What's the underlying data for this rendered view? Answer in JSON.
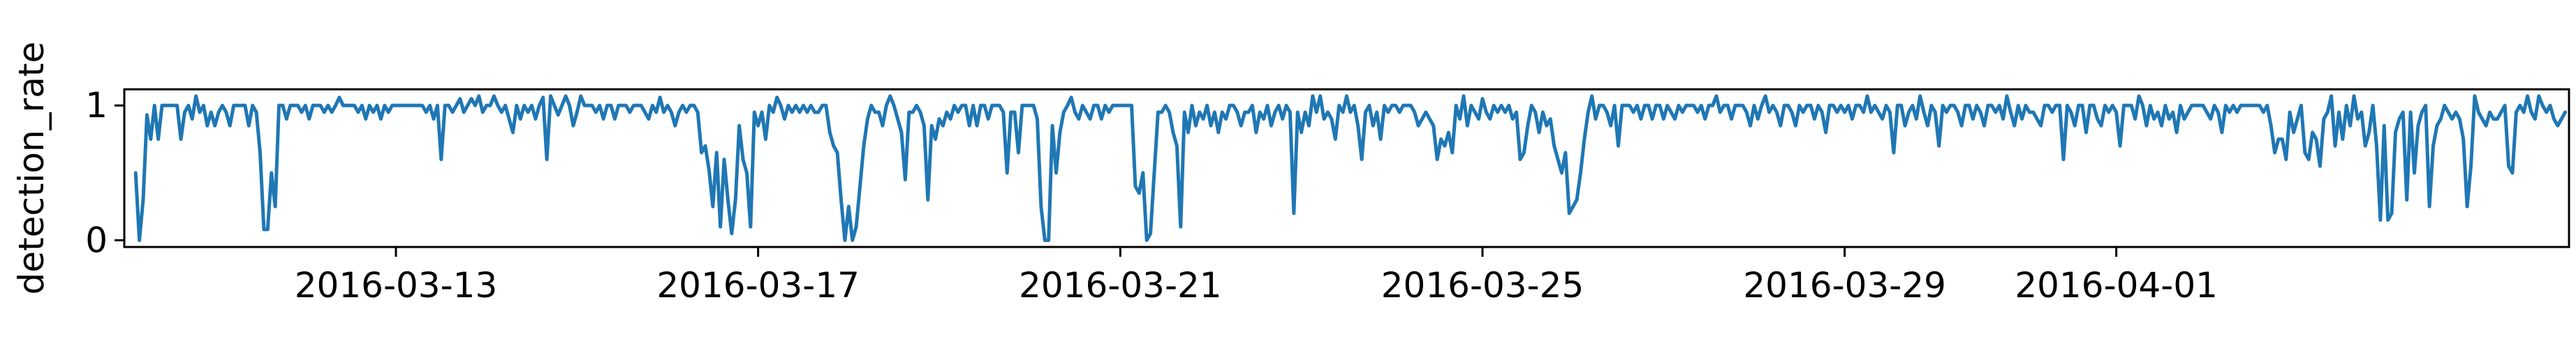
{
  "chart_data": {
    "type": "line",
    "title": "",
    "xlabel": "",
    "ylabel": "detection_rate",
    "x_range": [
      "2016-03-10T00:00",
      "2016-04-06T00:00"
    ],
    "ylim": [
      -0.05,
      1.12
    ],
    "grid": false,
    "legend": "none",
    "line_color": "#1f77b4",
    "y_ticks": [
      {
        "value": 0,
        "label": "0"
      },
      {
        "value": 1,
        "label": "1"
      }
    ],
    "x_ticks": [
      {
        "value": "2016-03-13",
        "label": "2016-03-13"
      },
      {
        "value": "2016-03-17",
        "label": "2016-03-17"
      },
      {
        "value": "2016-03-21",
        "label": "2016-03-21"
      },
      {
        "value": "2016-03-25",
        "label": "2016-03-25"
      },
      {
        "value": "2016-03-29",
        "label": "2016-03-29"
      },
      {
        "value": "2016-04-01",
        "label": "2016-04-01"
      }
    ],
    "series": [
      {
        "x_start": "2016-03-10T03:00",
        "x_step_hours": 1,
        "values": [
          0.5,
          0.0,
          0.3,
          0.93,
          0.75,
          1.0,
          0.75,
          1.0,
          1.0,
          1.0,
          1.0,
          1.0,
          0.75,
          0.95,
          1.0,
          0.9,
          1.07,
          0.95,
          1.0,
          0.85,
          0.95,
          0.85,
          0.95,
          1.0,
          0.95,
          0.85,
          1.0,
          1.0,
          1.0,
          1.0,
          0.85,
          1.0,
          0.95,
          0.65,
          0.08,
          0.08,
          0.5,
          0.25,
          1.0,
          1.0,
          0.9,
          1.0,
          1.0,
          1.0,
          0.95,
          1.0,
          0.9,
          1.0,
          1.0,
          1.0,
          0.95,
          1.0,
          0.95,
          1.0,
          1.06,
          1.0,
          1.0,
          1.0,
          1.0,
          0.95,
          1.0,
          0.9,
          1.0,
          0.95,
          1.0,
          0.9,
          1.0,
          0.95,
          1.0,
          1.0,
          1.0,
          1.0,
          1.0,
          1.0,
          1.0,
          1.0,
          1.0,
          0.95,
          1.0,
          0.9,
          1.0,
          0.6,
          1.0,
          1.0,
          0.95,
          1.0,
          1.05,
          0.95,
          1.0,
          1.05,
          1.0,
          1.07,
          0.95,
          1.0,
          1.0,
          1.07,
          1.0,
          0.95,
          1.0,
          0.9,
          0.8,
          1.0,
          0.9,
          1.0,
          0.95,
          1.0,
          0.9,
          1.0,
          1.06,
          0.6,
          1.07,
          1.0,
          0.93,
          1.0,
          1.07,
          1.0,
          0.85,
          0.95,
          1.07,
          1.0,
          1.0,
          1.0,
          0.95,
          1.0,
          0.9,
          1.0,
          1.0,
          0.9,
          1.0,
          1.0,
          1.0,
          0.95,
          1.0,
          1.0,
          1.0,
          0.95,
          0.9,
          1.0,
          0.95,
          1.06,
          0.95,
          1.0,
          0.95,
          0.85,
          0.95,
          1.0,
          0.95,
          1.0,
          1.0,
          0.95,
          0.65,
          0.7,
          0.52,
          0.25,
          0.65,
          0.1,
          0.6,
          0.3,
          0.05,
          0.3,
          0.85,
          0.6,
          0.5,
          0.1,
          0.95,
          0.85,
          0.95,
          0.75,
          1.0,
          0.95,
          1.06,
          1.0,
          0.9,
          1.0,
          0.95,
          1.0,
          0.95,
          1.0,
          0.95,
          1.0,
          0.95,
          0.95,
          1.0,
          1.0,
          0.8,
          0.7,
          0.65,
          0.3,
          0.0,
          0.25,
          0.0,
          0.1,
          0.4,
          0.7,
          0.9,
          1.0,
          0.95,
          0.95,
          0.85,
          1.0,
          1.07,
          1.0,
          0.9,
          0.8,
          0.45,
          0.95,
          0.95,
          1.0,
          0.95,
          0.85,
          0.3,
          0.85,
          0.75,
          0.9,
          0.85,
          0.95,
          0.9,
          1.0,
          0.95,
          1.0,
          1.0,
          0.85,
          1.0,
          0.85,
          1.0,
          1.0,
          0.9,
          1.0,
          1.0,
          1.0,
          0.95,
          0.5,
          0.95,
          0.95,
          0.65,
          1.0,
          1.0,
          1.0,
          1.0,
          0.9,
          0.25,
          0.0,
          0.0,
          0.85,
          0.5,
          0.8,
          0.95,
          1.0,
          1.06,
          0.95,
          0.9,
          1.0,
          0.95,
          0.9,
          1.0,
          1.0,
          0.9,
          1.0,
          0.95,
          1.0,
          1.0,
          1.0,
          1.0,
          1.0,
          1.0,
          0.4,
          0.35,
          0.5,
          0.0,
          0.05,
          0.5,
          0.95,
          0.95,
          1.0,
          0.95,
          0.8,
          0.7,
          0.1,
          0.95,
          0.8,
          1.0,
          0.85,
          0.95,
          0.9,
          1.0,
          0.85,
          0.95,
          0.8,
          0.95,
          0.9,
          1.0,
          1.0,
          0.95,
          0.85,
          0.95,
          0.95,
          1.0,
          0.8,
          0.95,
          0.9,
          1.0,
          0.85,
          0.95,
          1.0,
          0.9,
          1.0,
          0.95,
          0.2,
          0.95,
          0.8,
          0.95,
          0.85,
          1.07,
          0.95,
          1.07,
          0.9,
          0.95,
          0.9,
          0.75,
          1.0,
          0.95,
          1.07,
          0.95,
          1.0,
          0.85,
          0.6,
          0.95,
          1.0,
          0.85,
          0.95,
          0.75,
          1.0,
          0.95,
          1.0,
          1.0,
          0.95,
          1.0,
          1.0,
          1.0,
          0.95,
          0.85,
          0.9,
          0.95,
          0.9,
          0.85,
          0.6,
          0.75,
          0.7,
          0.8,
          0.65,
          1.0,
          0.9,
          1.07,
          0.85,
          1.0,
          0.95,
          0.9,
          1.05,
          0.95,
          0.9,
          1.0,
          0.95,
          1.0,
          0.95,
          1.0,
          0.9,
          0.95,
          0.6,
          0.65,
          0.85,
          1.0,
          0.95,
          0.8,
          0.95,
          0.85,
          0.9,
          0.7,
          0.6,
          0.5,
          0.65,
          0.2,
          0.25,
          0.3,
          0.5,
          0.75,
          0.95,
          1.07,
          0.9,
          1.0,
          1.0,
          0.95,
          0.85,
          1.0,
          0.7,
          1.0,
          1.0,
          1.0,
          0.95,
          1.0,
          0.9,
          1.0,
          1.0,
          0.9,
          1.0,
          1.0,
          0.9,
          1.0,
          0.95,
          0.9,
          1.0,
          0.95,
          1.0,
          1.0,
          1.0,
          0.95,
          1.0,
          0.9,
          1.0,
          1.0,
          1.07,
          0.95,
          1.0,
          1.0,
          0.9,
          1.0,
          1.0,
          1.0,
          0.95,
          0.85,
          1.0,
          0.9,
          1.0,
          1.07,
          0.95,
          1.0,
          0.95,
          0.85,
          1.0,
          1.0,
          0.95,
          0.85,
          1.0,
          0.95,
          1.0,
          1.0,
          0.9,
          1.0,
          0.95,
          0.8,
          1.0,
          1.0,
          0.95,
          1.0,
          0.95,
          1.0,
          0.9,
          1.0,
          1.0,
          0.95,
          1.07,
          0.95,
          1.0,
          0.95,
          0.9,
          1.0,
          0.95,
          0.65,
          1.0,
          1.0,
          0.85,
          0.95,
          1.0,
          0.9,
          1.07,
          0.95,
          0.85,
          1.0,
          0.95,
          0.7,
          1.0,
          0.95,
          1.0,
          1.0,
          0.95,
          0.85,
          1.0,
          1.0,
          0.9,
          1.0,
          0.95,
          0.85,
          1.0,
          1.0,
          0.95,
          1.0,
          0.9,
          1.07,
          0.95,
          0.85,
          1.0,
          0.9,
          1.0,
          0.95,
          0.95,
          0.9,
          0.85,
          1.0,
          1.0,
          0.95,
          1.0,
          1.0,
          0.6,
          1.0,
          0.95,
          0.85,
          1.0,
          1.0,
          0.8,
          1.0,
          1.0,
          0.9,
          0.85,
          1.0,
          0.95,
          1.0,
          0.95,
          0.7,
          1.0,
          1.0,
          1.0,
          0.9,
          1.07,
          1.0,
          0.85,
          1.0,
          0.9,
          0.95,
          0.85,
          1.0,
          0.9,
          0.95,
          0.8,
          1.0,
          0.9,
          0.95,
          1.0,
          1.0,
          1.0,
          1.0,
          0.95,
          0.9,
          1.0,
          0.95,
          0.8,
          1.0,
          0.95,
          1.0,
          0.95,
          1.0,
          1.0,
          1.0,
          1.0,
          1.0,
          1.0,
          0.95,
          1.0,
          0.85,
          0.65,
          0.75,
          0.75,
          0.6,
          0.95,
          0.8,
          0.9,
          1.0,
          0.65,
          0.6,
          0.8,
          0.75,
          0.55,
          0.9,
          0.95,
          1.07,
          0.7,
          0.95,
          0.75,
          1.0,
          0.85,
          1.07,
          0.9,
          0.95,
          0.7,
          0.8,
          1.0,
          0.7,
          0.15,
          0.85,
          0.15,
          0.2,
          0.8,
          0.9,
          0.95,
          0.3,
          0.95,
          0.5,
          0.85,
          0.95,
          1.0,
          0.25,
          0.7,
          0.85,
          0.9,
          1.0,
          0.95,
          0.9,
          0.95,
          0.9,
          0.75,
          0.25,
          0.55,
          1.07,
          0.95,
          0.9,
          0.85,
          0.95,
          0.9,
          0.9,
          0.95,
          1.0,
          0.55,
          0.5,
          0.95,
          1.0,
          0.95,
          1.07,
          0.95,
          0.9,
          1.07,
          1.0,
          0.95,
          1.0,
          0.9,
          0.85,
          0.9,
          0.95
        ]
      }
    ]
  }
}
